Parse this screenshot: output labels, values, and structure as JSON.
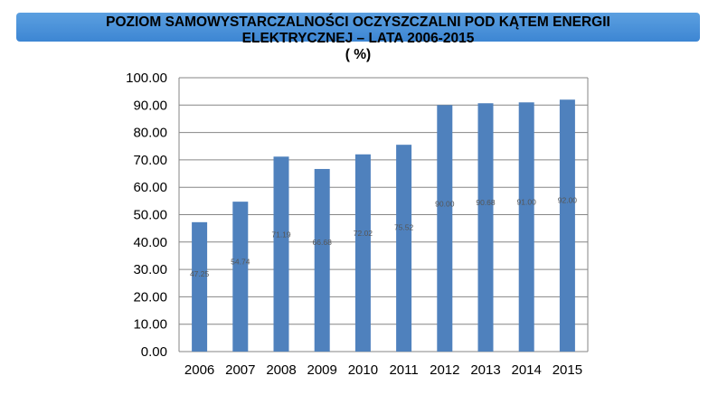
{
  "chart_data": {
    "type": "bar",
    "title_lines": [
      "POZIOM SAMOWYSTARCZALNOŚCI  OCZYSZCZALNI POD KĄTEM ENERGII",
      "ELEKTRYCZNEJ – LATA 2006-2015",
      "( %)"
    ],
    "categories": [
      "2006",
      "2007",
      "2008",
      "2009",
      "2010",
      "2011",
      "2012",
      "2013",
      "2014",
      "2015"
    ],
    "values": [
      47.25,
      54.74,
      71.19,
      66.68,
      72.02,
      75.52,
      90.0,
      90.68,
      91.0,
      92.0
    ],
    "value_labels": [
      "47.25",
      "54.74",
      "71.19",
      "66.68",
      "72.02",
      "75.52",
      "90.00",
      "90.68",
      "91.00",
      "92.00"
    ],
    "y_ticks": [
      "0.00",
      "10.00",
      "20.00",
      "30.00",
      "40.00",
      "50.00",
      "60.00",
      "70.00",
      "80.00",
      "90.00",
      "100.00"
    ],
    "ylim": [
      0,
      100
    ],
    "grid": true,
    "colors": {
      "bar": "#4f81bd",
      "grid": "#868686",
      "banner": "#4a90d9"
    }
  }
}
